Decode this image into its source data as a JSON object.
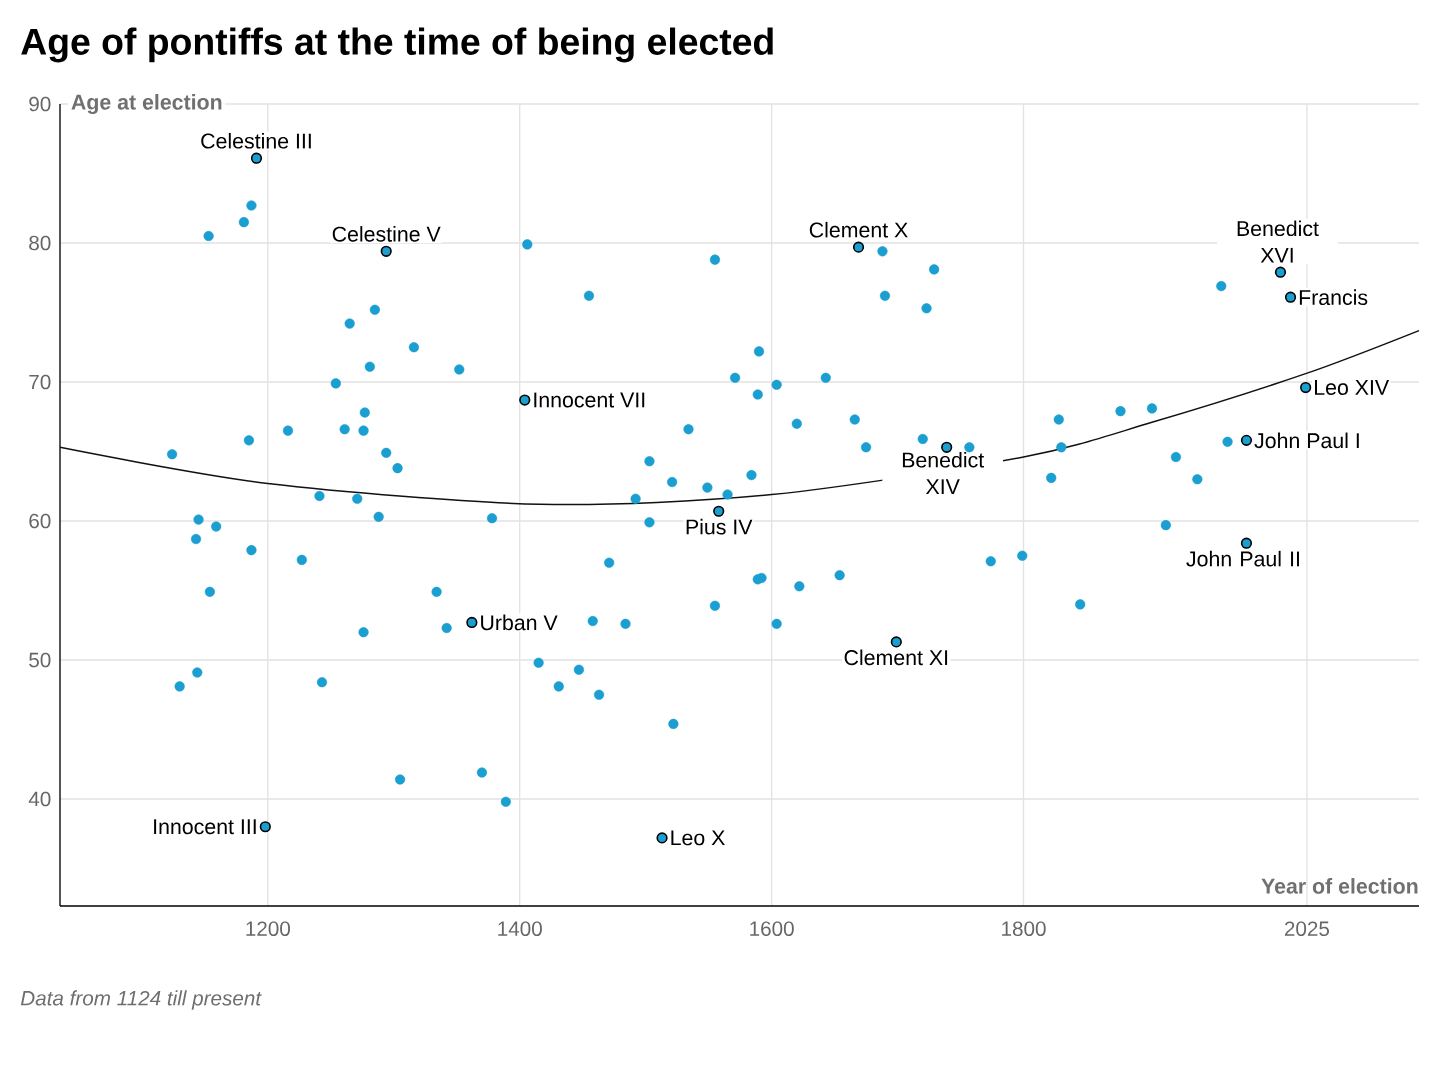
{
  "chart_data": {
    "type": "scatter",
    "title": "Age of pontiffs at the time of being elected",
    "xlabel": "Year of election",
    "ylabel": "Age at election",
    "xlim": [
      1035,
      2114
    ],
    "ylim": [
      32.3,
      90
    ],
    "xticks": [
      1200,
      1400,
      1600,
      1800,
      2025
    ],
    "yticks": [
      40,
      50,
      60,
      70,
      80,
      90
    ],
    "grid": true,
    "series": [
      {
        "color": "#1b9fd1",
        "marker": "circle",
        "x": [
          1187,
          1181,
          1153,
          1406,
          1285,
          1265,
          1316,
          1281,
          1352,
          1254,
          1277,
          1216,
          1261,
          1276,
          1124,
          1185,
          1294,
          1303,
          1241,
          1271,
          1145,
          1159,
          1288,
          1378,
          1143,
          1187,
          1227,
          1154,
          1334,
          1342,
          1276,
          1415,
          1144,
          1130,
          1243,
          1305,
          1370,
          1389,
          1455,
          1555,
          1688,
          1729,
          1690,
          1723,
          1590,
          1571,
          1643,
          1604,
          1589,
          1534,
          1620,
          1666,
          1720,
          1757,
          1675,
          1503,
          1521,
          1549,
          1584,
          1565,
          1492,
          1503,
          1471,
          1589,
          1592,
          1622,
          1654,
          1774,
          1555,
          1458,
          1484,
          1604,
          1447,
          1431,
          1463,
          1522,
          1828,
          1877,
          1902,
          1830,
          1822,
          1921,
          1938,
          1962,
          1957,
          1799,
          1845,
          1913
        ],
        "values": [
          82.7,
          81.5,
          80.5,
          79.9,
          75.2,
          74.2,
          72.5,
          71.1,
          70.9,
          69.9,
          67.8,
          66.5,
          66.6,
          66.5,
          64.8,
          65.8,
          64.9,
          63.8,
          61.8,
          61.6,
          60.1,
          59.6,
          60.3,
          60.2,
          58.7,
          57.9,
          57.2,
          54.9,
          54.9,
          52.3,
          52.0,
          49.8,
          49.1,
          48.1,
          48.4,
          41.4,
          41.9,
          39.8,
          76.2,
          78.8,
          79.4,
          78.1,
          76.2,
          75.3,
          72.2,
          70.3,
          70.3,
          69.8,
          69.1,
          66.6,
          67.0,
          67.3,
          65.9,
          65.3,
          65.3,
          64.3,
          62.8,
          62.4,
          63.3,
          61.9,
          61.6,
          59.9,
          57.0,
          55.8,
          55.9,
          55.3,
          56.1,
          57.1,
          53.9,
          52.8,
          52.6,
          52.6,
          49.3,
          48.1,
          47.5,
          45.4,
          67.3,
          67.9,
          68.1,
          65.3,
          63.1,
          64.6,
          63.0,
          65.7,
          76.9,
          57.5,
          54.0,
          59.7
        ]
      },
      {
        "color": "#1b9fd1",
        "marker": "circle",
        "x": [
          1191,
          1294,
          1404,
          1362,
          1198,
          1669,
          1739,
          1558,
          1699,
          1513,
          1977,
          2004,
          2012,
          2024,
          1977
        ],
        "values": [
          86.1,
          79.4,
          68.7,
          52.7,
          38.0,
          79.7,
          65.3,
          60.7,
          51.3,
          37.2,
          65.8,
          77.9,
          76.1,
          69.6,
          58.4
        ]
      },
      {
        "type": "line",
        "marker": "none",
        "color": "#111111",
        "x": [
          1035,
          1200,
          1416,
          1600,
          1800,
          1902,
          2024,
          2114
        ],
        "values": [
          65.3,
          62.7,
          61.2,
          61.9,
          64.6,
          67.1,
          70.6,
          73.7
        ]
      }
    ],
    "annotations": [
      {
        "text": "Celestine III",
        "x": 1191,
        "y": 86.1
      },
      {
        "text": "Celestine V",
        "x": 1294,
        "y": 79.4
      },
      {
        "text": "Innocent VII",
        "x": 1404,
        "y": 68.7
      },
      {
        "text": "Urban V",
        "x": 1362,
        "y": 52.7
      },
      {
        "text": "Innocent III",
        "x": 1198,
        "y": 38.0
      },
      {
        "text": "Clement X",
        "x": 1669,
        "y": 79.7
      },
      {
        "text": "Benedict XIV",
        "x": 1739,
        "y": 65.3
      },
      {
        "text": "Pius IV",
        "x": 1558,
        "y": 60.7
      },
      {
        "text": "Clement XI",
        "x": 1699,
        "y": 51.3
      },
      {
        "text": "Leo X",
        "x": 1513,
        "y": 37.2
      },
      {
        "text": "John Paul I",
        "x": 1977,
        "y": 65.8
      },
      {
        "text": "Benedict XVI",
        "x": 2004,
        "y": 77.9
      },
      {
        "text": "Francis",
        "x": 2012,
        "y": 76.1
      },
      {
        "text": "Leo XIV",
        "x": 2024,
        "y": 69.6
      },
      {
        "text": "John Paul II",
        "x": 1977,
        "y": 58.4
      },
      "Data from 1124 till present"
    ]
  }
}
